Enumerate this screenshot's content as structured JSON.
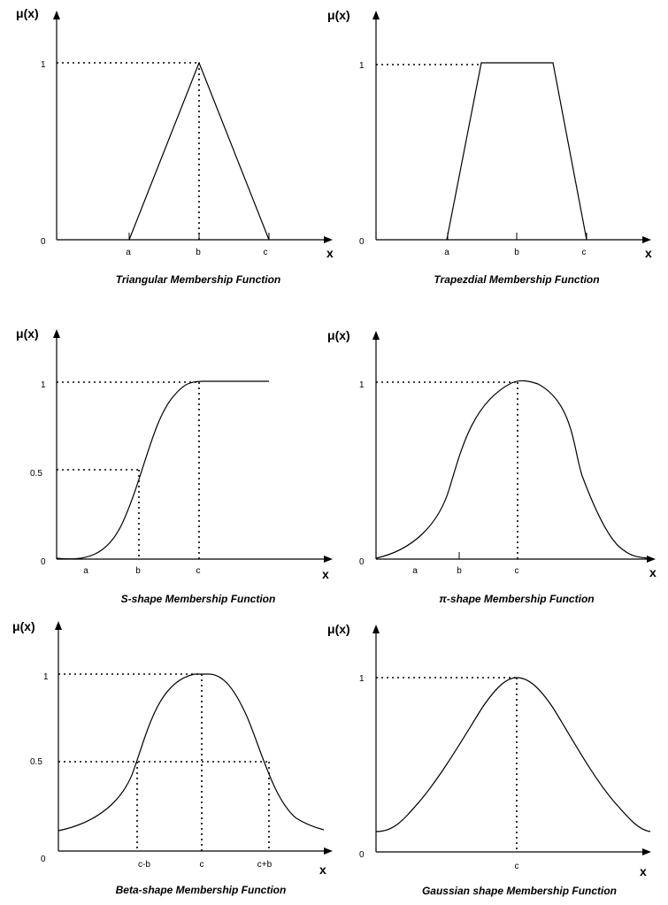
{
  "panels": [
    {
      "id": "triangular",
      "title": "Triangular Membership Function",
      "y_axis_label": "μ(x)",
      "x_axis_label": "x",
      "y_ticks": [
        {
          "value": 0,
          "label": "0"
        },
        {
          "value": 1,
          "label": "1"
        }
      ],
      "x_ticks": [
        "a",
        "b",
        "c"
      ]
    },
    {
      "id": "trapezoidal",
      "title": "Trapezdial Membership Function",
      "y_axis_label": "μ(x)",
      "x_axis_label": "x",
      "y_ticks": [
        {
          "value": 0,
          "label": "0"
        },
        {
          "value": 1,
          "label": "1"
        }
      ],
      "x_ticks": [
        "a",
        "b",
        "c"
      ]
    },
    {
      "id": "s-shape",
      "title": "S-shape Membership Function",
      "y_axis_label": "μ(x)",
      "x_axis_label": "x",
      "y_ticks": [
        {
          "value": 0,
          "label": "0"
        },
        {
          "value": 0.5,
          "label": "0.5"
        },
        {
          "value": 1,
          "label": "1"
        }
      ],
      "x_ticks": [
        "a",
        "b",
        "c"
      ]
    },
    {
      "id": "pi-shape",
      "title": "π-shape Membership Function",
      "y_axis_label": "μ(x)",
      "x_axis_label": "x",
      "y_ticks": [
        {
          "value": 0,
          "label": "0"
        },
        {
          "value": 1,
          "label": "1"
        }
      ],
      "x_ticks": [
        "a",
        "b",
        "c"
      ]
    },
    {
      "id": "beta-shape",
      "title": "Beta-shape Membership Function",
      "y_axis_label": "μ(x)",
      "x_axis_label": "x",
      "y_ticks": [
        {
          "value": 0,
          "label": "0"
        },
        {
          "value": 0.5,
          "label": "0.5"
        },
        {
          "value": 1,
          "label": "1"
        }
      ],
      "x_ticks": [
        "c-b",
        "c",
        "c+b"
      ]
    },
    {
      "id": "gaussian",
      "title": "Gaussian shape Membership Function",
      "y_axis_label": "μ(x)",
      "x_axis_label": "x",
      "y_ticks": [
        {
          "value": 0,
          "label": "0"
        },
        {
          "value": 1,
          "label": "1"
        }
      ],
      "x_ticks": [
        "c"
      ]
    }
  ]
}
